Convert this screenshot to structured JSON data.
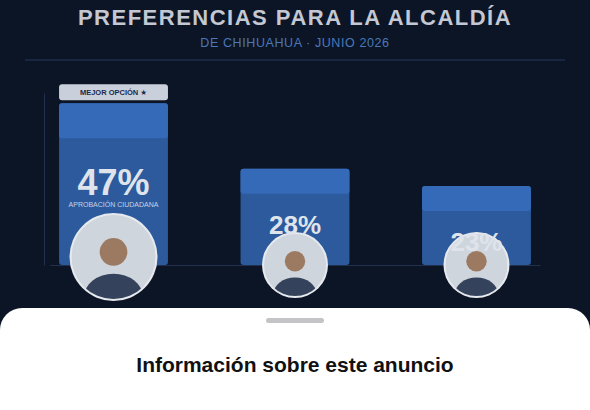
{
  "chart_data": {
    "type": "bar",
    "title": "PREFERENCIAS PARA LA ALCALDÍA",
    "subtitle": "DE CHIHUAHUA · JUNIO 2026",
    "categories": [
      null,
      null,
      null
    ],
    "values": [
      47,
      28,
      23
    ],
    "value_labels": [
      "47%",
      "28%",
      "23%"
    ],
    "data_labels": true,
    "color": "#2c5a9c",
    "ylim": [
      0,
      50
    ],
    "tick_labels": false,
    "grid": false,
    "annotations": [
      {
        "text": "MEJOR OPCIÓN ★"
      },
      {
        "text": "APROBACIÓN CIUDADANA"
      }
    ]
  },
  "sheet": {
    "title": "Información sobre este anuncio"
  }
}
